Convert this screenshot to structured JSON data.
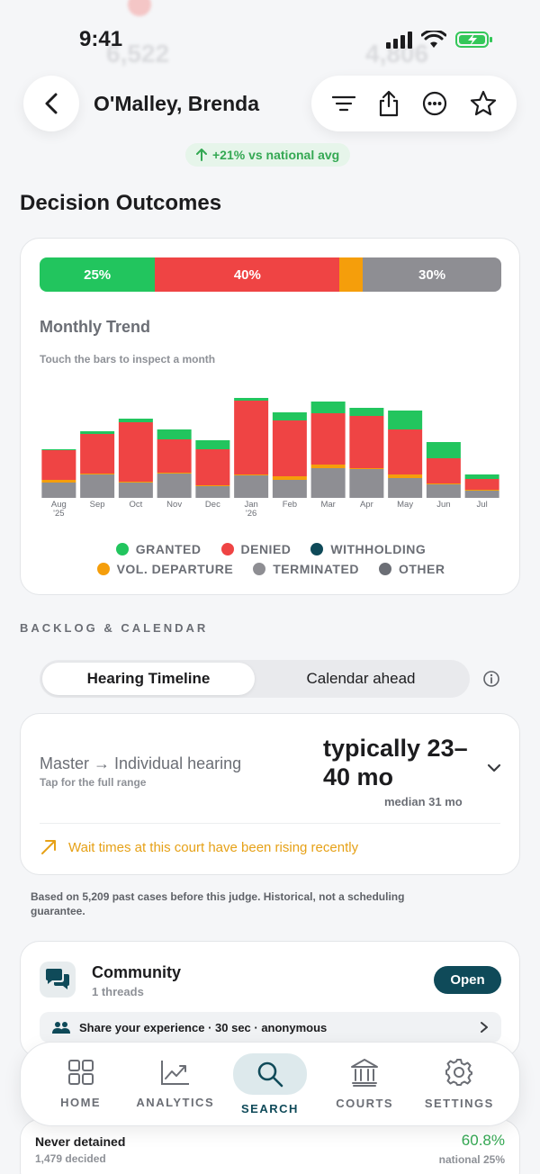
{
  "status_bar": {
    "time": "9:41"
  },
  "ghost_numbers": {
    "left": "6,522",
    "right": "4,806"
  },
  "nav": {
    "title": "O'Malley, Brenda"
  },
  "comparison_badge": "+21% vs national avg",
  "decision_outcomes": {
    "title": "Decision Outcomes",
    "share_bar": [
      {
        "label": "25%",
        "value": 25,
        "color": "#22c55e"
      },
      {
        "label": "40%",
        "value": 40,
        "color": "#ef4444"
      },
      {
        "label": "",
        "value": 5,
        "color": "#f59e0b"
      },
      {
        "label": "30%",
        "value": 30,
        "color": "#8e8e93"
      }
    ],
    "trend_title": "Monthly Trend",
    "trend_hint": "Touch the bars to inspect a month"
  },
  "chart_data": {
    "type": "bar",
    "stacked": true,
    "categories": [
      "Aug '25",
      "Sep",
      "Oct",
      "Nov",
      "Dec",
      "Jan '26",
      "Feb",
      "Mar",
      "Apr",
      "May",
      "Jun",
      "Jul"
    ],
    "tick_labels": [
      [
        "Aug",
        "'25"
      ],
      [
        "Sep"
      ],
      [
        "Oct"
      ],
      [
        "Nov"
      ],
      [
        "Dec"
      ],
      [
        "Jan",
        "'26"
      ],
      [
        "Feb"
      ],
      [
        "Mar"
      ],
      [
        "Apr"
      ],
      [
        "May"
      ],
      [
        "Jun"
      ],
      [
        "Jul"
      ]
    ],
    "series": [
      {
        "name": "OTHER",
        "color": "#8e8e93",
        "values": [
          17,
          26,
          17,
          27,
          13,
          25,
          20,
          33,
          32,
          22,
          15,
          8
        ]
      },
      {
        "name": "VOL. DEPARTURE",
        "color": "#f59e0b",
        "values": [
          3,
          1,
          1,
          1,
          1,
          1,
          4,
          4,
          1,
          4,
          1,
          1
        ]
      },
      {
        "name": "DENIED",
        "color": "#ef4444",
        "values": [
          33,
          44,
          66,
          37,
          40,
          82,
          62,
          57,
          58,
          50,
          28,
          12
        ]
      },
      {
        "name": "GRANTED",
        "color": "#22c55e",
        "values": [
          1,
          3,
          4,
          11,
          10,
          3,
          9,
          13,
          9,
          21,
          18,
          5
        ]
      }
    ],
    "legend": [
      {
        "name": "GRANTED",
        "color": "#22c55e"
      },
      {
        "name": "DENIED",
        "color": "#ef4444"
      },
      {
        "name": "WITHHOLDING",
        "color": "#0f4a59"
      },
      {
        "name": "VOL. DEPARTURE",
        "color": "#f59e0b"
      },
      {
        "name": "TERMINATED",
        "color": "#8e8e93"
      },
      {
        "name": "OTHER",
        "color": "#6b6e75"
      }
    ],
    "ylim": [
      0,
      120
    ],
    "grid": false,
    "legend_position": "bottom"
  },
  "backlog": {
    "section_label": "BACKLOG & CALENDAR",
    "segments": [
      "Hearing Timeline",
      "Calendar ahead"
    ],
    "hearing": {
      "title": "Master → Individual hearing",
      "subtitle": "Tap for the full range",
      "range": "typically 23–40 mo",
      "median": "median 31 mo",
      "warning": "Wait times at this court have been rising recently"
    },
    "footnote": "Based on 5,209 past cases before this judge. Historical, not a scheduling guarantee."
  },
  "community": {
    "title": "Community",
    "threads": "1 threads",
    "open_label": "Open",
    "share_text": "Share your experience · 30 sec · anonymous"
  },
  "tabbar": {
    "tabs": [
      "HOME",
      "ANALYTICS",
      "SEARCH",
      "COURTS",
      "SETTINGS"
    ],
    "active": "SEARCH"
  },
  "detention": {
    "title": "Never detained",
    "decided": "1,479 decided",
    "percent": "60.8%",
    "national": "national 25%"
  },
  "colors": {
    "accent": "#0f4a59",
    "green": "#22c55e",
    "red": "#ef4444",
    "orange": "#f59e0b",
    "gray": "#8e8e93"
  }
}
